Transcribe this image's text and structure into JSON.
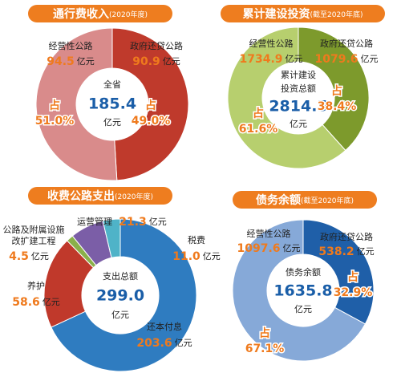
{
  "chart_data": [
    {
      "type": "donut",
      "title": "通行费收入",
      "subtitle": "(2020年度)",
      "center_label": [
        "全省"
      ],
      "total": "185.4",
      "unit": "亿元",
      "categories": [
        "政府还贷公路",
        "经营性公路"
      ],
      "values": [
        90.9,
        94.5
      ],
      "value_labels": [
        "90.9",
        "94.5"
      ],
      "colors": [
        "#bf3a2c",
        "#d98b8b"
      ],
      "share_prefix": "占",
      "share_labels": [
        "49.0%",
        "51.0%"
      ]
    },
    {
      "type": "donut",
      "title": "累计建设投资",
      "subtitle": "(截至2020年底)",
      "center_label": [
        "累计建设",
        "投资总额"
      ],
      "total": "2814.5",
      "unit": "亿元",
      "categories": [
        "政府还贷公路",
        "经营性公路"
      ],
      "values": [
        1079.6,
        1734.9
      ],
      "value_labels": [
        "1079.6",
        "1734.9"
      ],
      "colors": [
        "#7d9a2c",
        "#b7cf6e"
      ],
      "share_prefix": "占",
      "share_labels": [
        "38.4%",
        "61.6%"
      ]
    },
    {
      "type": "donut",
      "title": "收费公路支出",
      "subtitle": "(2020年度)",
      "center_label": [
        "支出总额"
      ],
      "total": "299.0",
      "unit": "亿元",
      "categories": [
        "还本付息",
        "养护",
        "公路及附属设施改扩建工程",
        "运营管理",
        "税费"
      ],
      "values": [
        203.6,
        58.6,
        4.5,
        21.3,
        11.0
      ],
      "value_labels": [
        "203.6",
        "58.6",
        "4.5",
        "21.3",
        "11.0"
      ],
      "colors": [
        "#2f7cc0",
        "#c0392b",
        "#8ab04a",
        "#7b5ea7",
        "#4fb3c8"
      ]
    },
    {
      "type": "donut",
      "title": "债务余额",
      "subtitle": "(截至2020年底)",
      "center_label": [
        "债务余额"
      ],
      "total": "1635.8",
      "unit": "亿元",
      "categories": [
        "政府还贷公路",
        "经营性公路"
      ],
      "values": [
        538.2,
        1097.6
      ],
      "value_labels": [
        "538.2",
        "1097.6"
      ],
      "colors": [
        "#1f5fa8",
        "#86a9d8"
      ],
      "share_prefix": "占",
      "share_labels": [
        "32.9%",
        "67.1%"
      ]
    }
  ]
}
